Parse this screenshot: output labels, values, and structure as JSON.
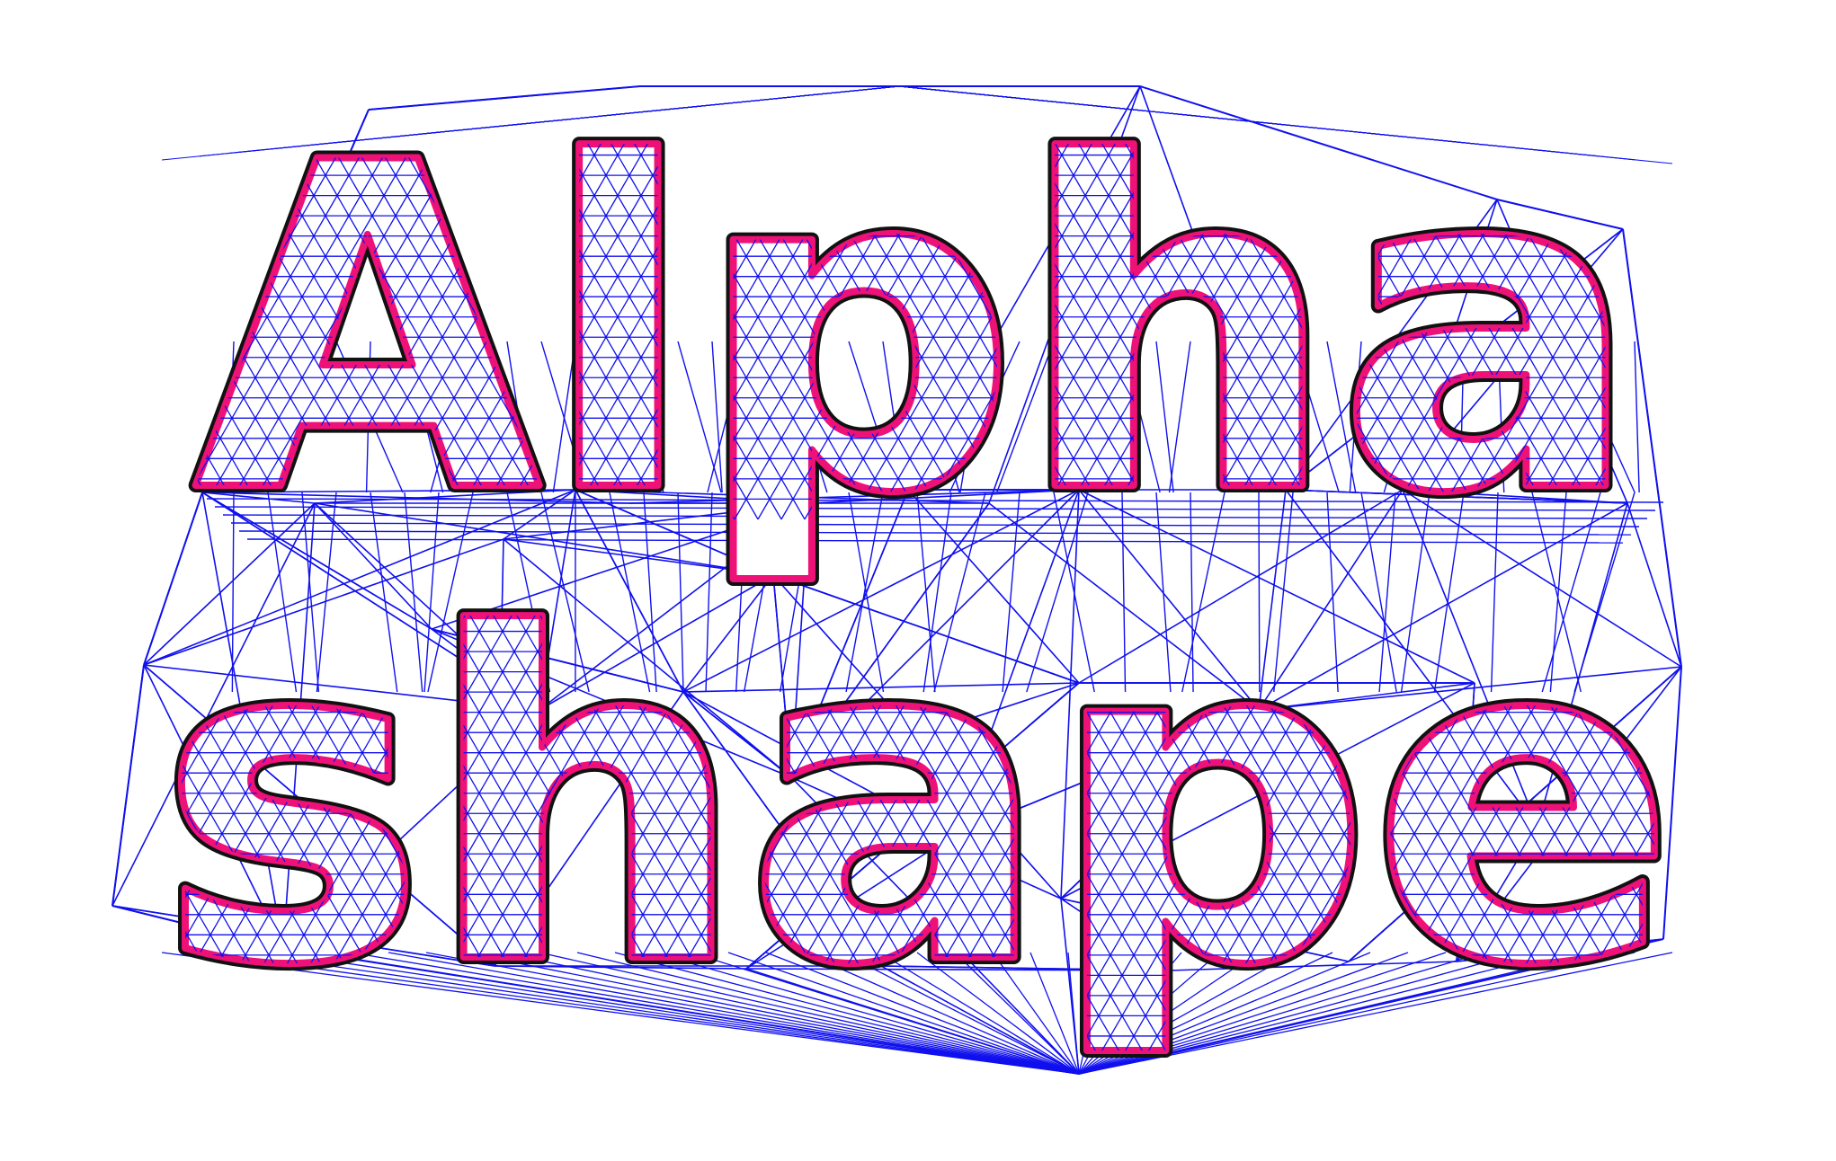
{
  "figure": {
    "words": [
      "Alpha",
      "shape"
    ],
    "colors": {
      "background": "#ffffff",
      "triangulation_edges": "#1010ee",
      "boundary_outline": "#111111",
      "boundary_fill": "#ee1177"
    },
    "legend": "none",
    "axes": "none"
  }
}
